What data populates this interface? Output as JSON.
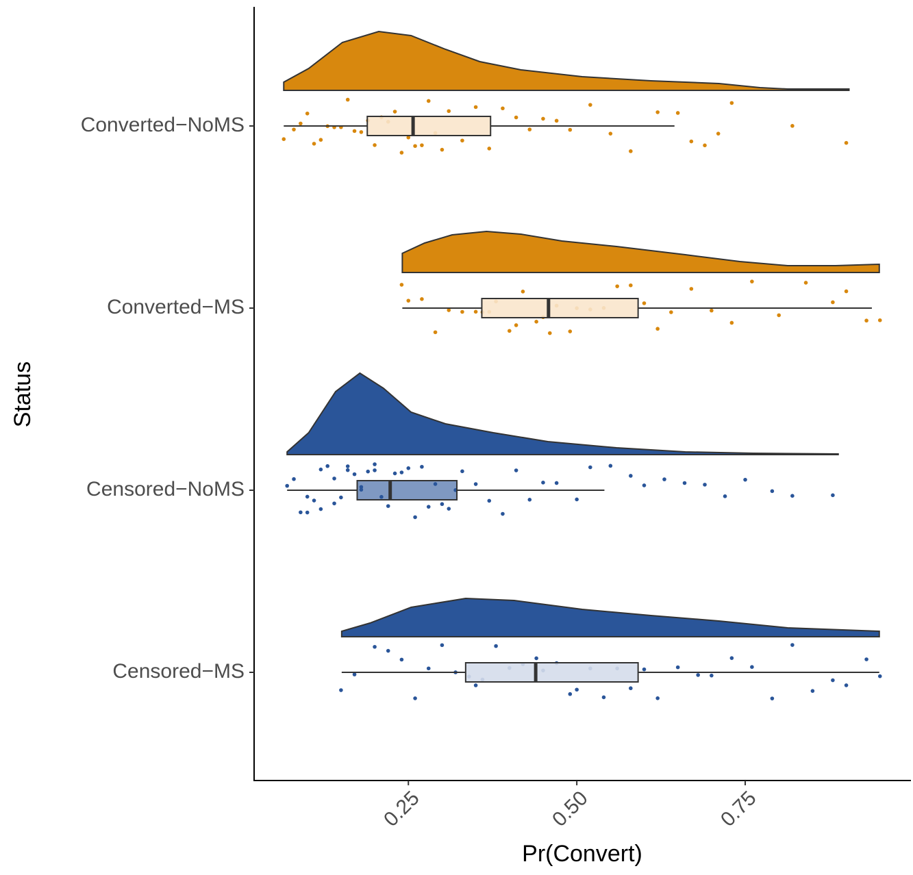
{
  "chart_data": {
    "type": "raincloud",
    "x_label": "Pr(Convert)",
    "y_label": "Status",
    "xlim": [
      0.021,
      0.996
    ],
    "xticks": [
      0.25,
      {
        "value": 0.5,
        "label": "0.50"
      },
      0.75
    ],
    "categories": [
      "Converted−NoMS",
      "Converted−MS",
      "Censored−NoMS",
      "Censored−MS"
    ],
    "groups": [
      {
        "color": "#D8880E",
        "box_fill": "#FAE6CC",
        "box": {
          "lower_whisker": 0.065,
          "q1": 0.189,
          "median": 0.257,
          "q3": 0.372,
          "upper_whisker": 0.645
        },
        "density": {
          "x": [
            0.065,
            0.102,
            0.152,
            0.206,
            0.254,
            0.305,
            0.356,
            0.417,
            0.508,
            0.61,
            0.711,
            0.772,
            0.813,
            0.904
          ],
          "y": [
            0.48,
            1.28,
            2.8,
            3.44,
            3.2,
            2.4,
            1.68,
            1.2,
            0.8,
            0.56,
            0.4,
            0.16,
            0.08,
            0.08
          ]
        },
        "points": [
          0.065,
          0.08,
          0.09,
          0.1,
          0.11,
          0.12,
          0.13,
          0.14,
          0.15,
          0.16,
          0.17,
          0.18,
          0.19,
          0.2,
          0.21,
          0.22,
          0.23,
          0.24,
          0.25,
          0.26,
          0.27,
          0.28,
          0.29,
          0.3,
          0.31,
          0.33,
          0.35,
          0.37,
          0.39,
          0.41,
          0.43,
          0.45,
          0.47,
          0.49,
          0.52,
          0.55,
          0.58,
          0.62,
          0.65,
          0.67,
          0.69,
          0.71,
          0.73,
          0.82,
          0.9
        ]
      },
      {
        "color": "#D8880E",
        "box_fill": "#FAE6CC",
        "box": {
          "lower_whisker": 0.241,
          "q1": 0.359,
          "median": 0.458,
          "q3": 0.591,
          "upper_whisker": 0.938
        },
        "density": {
          "x": [
            0.241,
            0.274,
            0.315,
            0.366,
            0.417,
            0.478,
            0.559,
            0.661,
            0.742,
            0.813,
            0.884,
            0.949
          ],
          "y": [
            1.12,
            1.72,
            2.2,
            2.4,
            2.24,
            1.84,
            1.52,
            1.04,
            0.64,
            0.4,
            0.4,
            0.48
          ]
        },
        "points": [
          0.24,
          0.25,
          0.27,
          0.29,
          0.31,
          0.33,
          0.35,
          0.36,
          0.37,
          0.38,
          0.4,
          0.41,
          0.42,
          0.44,
          0.45,
          0.46,
          0.47,
          0.49,
          0.5,
          0.52,
          0.54,
          0.56,
          0.58,
          0.6,
          0.62,
          0.64,
          0.67,
          0.7,
          0.73,
          0.76,
          0.8,
          0.84,
          0.88,
          0.9,
          0.93,
          0.95
        ]
      },
      {
        "color": "#2A5599",
        "box_fill": "#2A5599",
        "box": {
          "lower_whisker": 0.07,
          "q1": 0.174,
          "median": 0.223,
          "q3": 0.322,
          "upper_whisker": 0.541
        },
        "density": {
          "x": [
            0.07,
            0.102,
            0.142,
            0.178,
            0.213,
            0.254,
            0.305,
            0.376,
            0.457,
            0.559,
            0.661,
            0.762,
            0.888
          ],
          "y": [
            0.16,
            1.28,
            3.68,
            4.76,
            3.88,
            2.48,
            1.8,
            1.28,
            0.76,
            0.4,
            0.16,
            0.08,
            0.04
          ]
        },
        "points": [
          0.07,
          0.08,
          0.09,
          0.1,
          0.1,
          0.11,
          0.12,
          0.12,
          0.13,
          0.14,
          0.14,
          0.15,
          0.16,
          0.16,
          0.17,
          0.18,
          0.18,
          0.19,
          0.2,
          0.2,
          0.21,
          0.22,
          0.23,
          0.24,
          0.25,
          0.26,
          0.27,
          0.28,
          0.29,
          0.3,
          0.31,
          0.32,
          0.33,
          0.35,
          0.37,
          0.39,
          0.41,
          0.43,
          0.45,
          0.47,
          0.5,
          0.52,
          0.55,
          0.58,
          0.6,
          0.63,
          0.66,
          0.69,
          0.72,
          0.75,
          0.79,
          0.82,
          0.88
        ]
      },
      {
        "color": "#2A5599",
        "box_fill": "#D5DDEB",
        "box": {
          "lower_whisker": 0.151,
          "q1": 0.335,
          "median": 0.439,
          "q3": 0.591,
          "upper_whisker": 0.949
        },
        "density": {
          "x": [
            0.151,
            0.193,
            0.254,
            0.335,
            0.407,
            0.508,
            0.61,
            0.711,
            0.813,
            0.949
          ],
          "y": [
            0.32,
            0.8,
            1.72,
            2.24,
            2.12,
            1.6,
            1.24,
            0.92,
            0.52,
            0.32
          ]
        },
        "points": [
          0.15,
          0.17,
          0.2,
          0.22,
          0.24,
          0.26,
          0.28,
          0.3,
          0.32,
          0.34,
          0.35,
          0.36,
          0.38,
          0.4,
          0.42,
          0.44,
          0.45,
          0.47,
          0.49,
          0.5,
          0.52,
          0.54,
          0.56,
          0.58,
          0.6,
          0.62,
          0.65,
          0.68,
          0.7,
          0.73,
          0.76,
          0.79,
          0.82,
          0.85,
          0.88,
          0.9,
          0.93,
          0.95
        ]
      }
    ]
  }
}
